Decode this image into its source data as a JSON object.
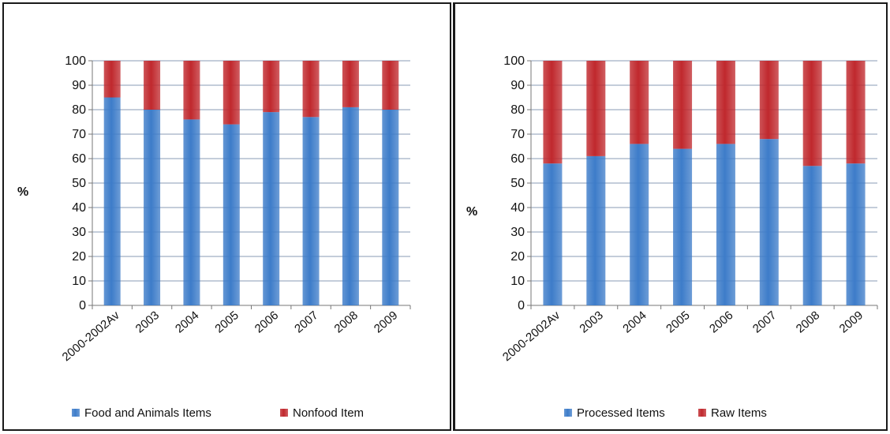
{
  "chart_data": [
    {
      "type": "bar",
      "stacked": true,
      "ylabel": "%",
      "ylim": [
        0,
        100
      ],
      "yticks": [
        0,
        10,
        20,
        30,
        40,
        50,
        60,
        70,
        80,
        90,
        100
      ],
      "categories": [
        "2000-2002Av",
        "2003",
        "2004",
        "2005",
        "2006",
        "2007",
        "2008",
        "2009"
      ],
      "series": [
        {
          "name": "Food and Animals Items",
          "color": "#3d7cc9",
          "values": [
            85,
            80,
            76,
            74,
            79,
            77,
            81,
            80
          ]
        },
        {
          "name": "Nonfood Item",
          "color": "#c0282d",
          "values": [
            15,
            20,
            24,
            26,
            21,
            23,
            19,
            20
          ]
        }
      ],
      "grid": true,
      "legend": "bottom"
    },
    {
      "type": "bar",
      "stacked": true,
      "ylabel": "%",
      "ylim": [
        0,
        100
      ],
      "yticks": [
        0,
        10,
        20,
        30,
        40,
        50,
        60,
        70,
        80,
        90,
        100
      ],
      "categories": [
        "2000-2002Av",
        "2003",
        "2004",
        "2005",
        "2006",
        "2007",
        "2008",
        "2009"
      ],
      "series": [
        {
          "name": "Processed Items",
          "color": "#3d7cc9",
          "values": [
            58,
            61,
            66,
            64,
            66,
            68,
            57,
            58
          ]
        },
        {
          "name": "Raw Items",
          "color": "#c0282d",
          "values": [
            42,
            39,
            34,
            36,
            34,
            32,
            43,
            42
          ]
        }
      ],
      "grid": true,
      "legend": "bottom"
    }
  ]
}
